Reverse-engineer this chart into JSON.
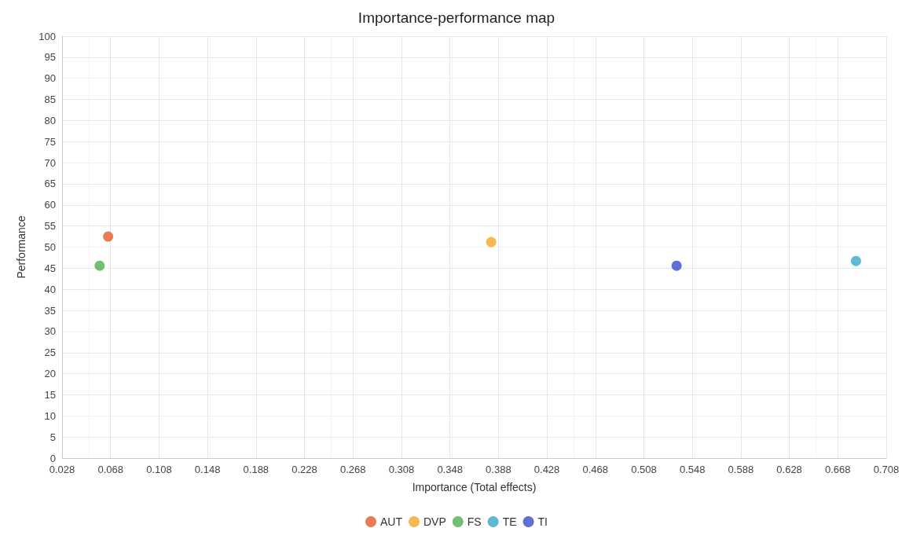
{
  "chart_data": {
    "type": "scatter",
    "title": "Importance-performance map",
    "xlabel": "Importance (Total effects)",
    "ylabel": "Performance",
    "xlim": [
      0.028,
      0.708
    ],
    "xticks": [
      0.028,
      0.068,
      0.108,
      0.148,
      0.188,
      0.228,
      0.268,
      0.308,
      0.348,
      0.388,
      0.428,
      0.468,
      0.508,
      0.548,
      0.588,
      0.628,
      0.668,
      0.708
    ],
    "ylim": [
      0,
      100
    ],
    "yticks": [
      0,
      5,
      10,
      15,
      20,
      25,
      30,
      35,
      40,
      45,
      50,
      55,
      60,
      65,
      70,
      75,
      80,
      85,
      90,
      95,
      100
    ],
    "grid": true,
    "legend": "bottom",
    "marker": "circle",
    "series": [
      {
        "name": "AUT",
        "color": "#e8582a",
        "x": [
          0.066
        ],
        "values": [
          52.5
        ]
      },
      {
        "name": "DVP",
        "color": "#f5a623",
        "x": [
          0.382
        ],
        "values": [
          51.2
        ]
      },
      {
        "name": "FS",
        "color": "#4caf50",
        "x": [
          0.059
        ],
        "values": [
          45.6
        ]
      },
      {
        "name": "TE",
        "color": "#36a9c9",
        "x": [
          0.683
        ],
        "values": [
          46.7
        ]
      },
      {
        "name": "TI",
        "color": "#3a4ac8",
        "x": [
          0.535
        ],
        "values": [
          45.6
        ]
      }
    ]
  }
}
